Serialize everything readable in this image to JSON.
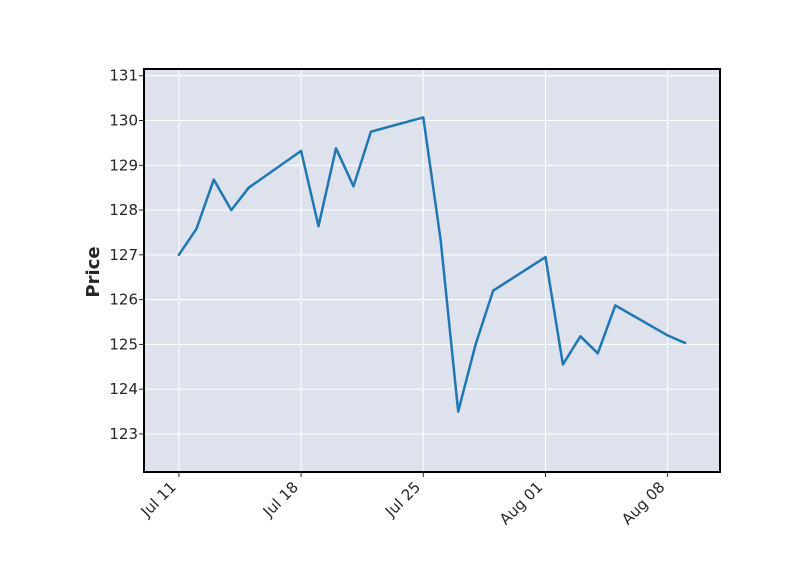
{
  "chart_data": {
    "type": "line",
    "title": "",
    "xlabel": "",
    "ylabel": "Price",
    "x": [
      "2022-07-11",
      "2022-07-12",
      "2022-07-13",
      "2022-07-14",
      "2022-07-15",
      "2022-07-18",
      "2022-07-19",
      "2022-07-20",
      "2022-07-21",
      "2022-07-22",
      "2022-07-25",
      "2022-07-26",
      "2022-07-27",
      "2022-07-28",
      "2022-07-29",
      "2022-08-01",
      "2022-08-02",
      "2022-08-03",
      "2022-08-04",
      "2022-08-05",
      "2022-08-08",
      "2022-08-09"
    ],
    "series": [
      {
        "name": "",
        "color": "#1f77b4",
        "values": [
          127.0,
          127.58,
          128.68,
          128.0,
          128.5,
          129.32,
          127.64,
          129.38,
          128.53,
          129.75,
          130.07,
          127.32,
          123.5,
          125.0,
          126.2,
          126.95,
          124.55,
          125.18,
          124.8,
          125.87,
          125.2,
          125.03
        ]
      }
    ],
    "xticks": [
      "Jul 11",
      "Jul 18",
      "Jul 25",
      "Aug 01",
      "Aug 08"
    ],
    "yticks": [
      123,
      124,
      125,
      126,
      127,
      128,
      129,
      130,
      131
    ],
    "ylim": [
      122.15,
      131.15
    ],
    "xlim": [
      "2022-07-09",
      "2022-08-11"
    ],
    "grid": true,
    "plot_background": "#dde2ed",
    "grid_color": "#ffffff",
    "frame_color": "#000000"
  }
}
